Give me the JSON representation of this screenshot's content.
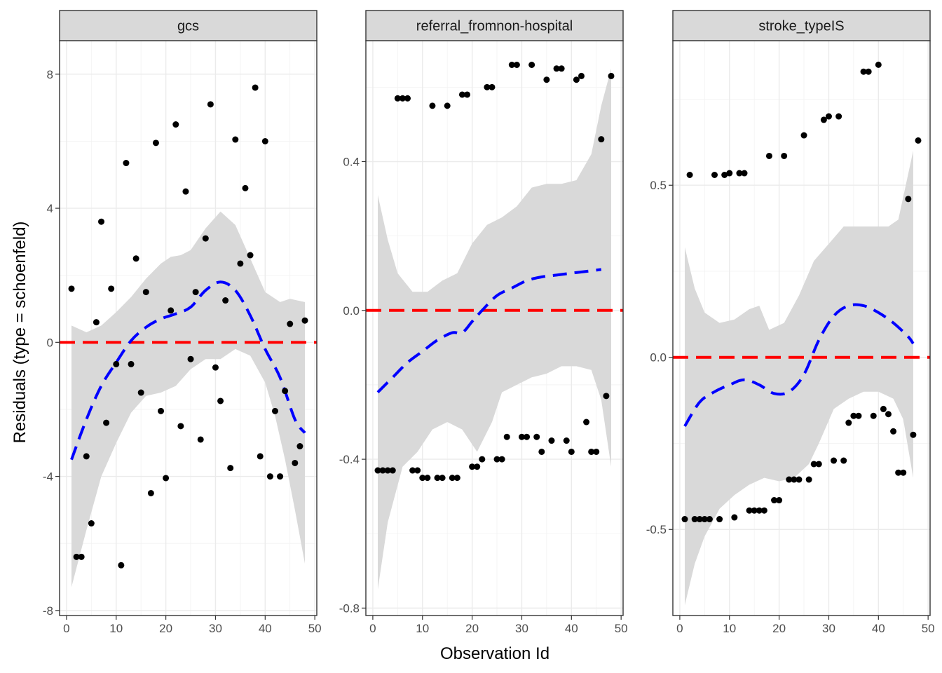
{
  "chart_data": {
    "type": "scatter",
    "xlabel": "Observation Id",
    "ylabel": "Residuals (type = schoenfeld)",
    "colors": {
      "points": "#000000",
      "smooth": "#0000ff",
      "reference": "#ff0000",
      "band": "#d9d9d9"
    },
    "x_ticks": [
      "0",
      "10",
      "20",
      "30",
      "40",
      "50"
    ],
    "xlim": [
      -1.4,
      50.4
    ],
    "panels": [
      {
        "strip": "gcs",
        "ylim": [
          -8.15,
          9.0
        ],
        "y_ticks": [
          "-8",
          "-4",
          "0",
          "4",
          "8"
        ],
        "y_tick_values": [
          -8,
          -4,
          0,
          4,
          8
        ],
        "y_minor": [
          -6,
          -2,
          2,
          6
        ],
        "reference_line": 0,
        "points": [
          [
            1,
            1.6
          ],
          [
            2,
            -6.4
          ],
          [
            3,
            -6.4
          ],
          [
            4,
            -3.4
          ],
          [
            5,
            -5.4
          ],
          [
            6,
            0.6
          ],
          [
            7,
            3.6
          ],
          [
            8,
            -2.4
          ],
          [
            9,
            1.6
          ],
          [
            10,
            -0.65
          ],
          [
            11,
            -6.65
          ],
          [
            12,
            5.35
          ],
          [
            13,
            -0.65
          ],
          [
            14,
            2.5
          ],
          [
            15,
            -1.5
          ],
          [
            16,
            1.5
          ],
          [
            17,
            -4.5
          ],
          [
            18,
            5.95
          ],
          [
            19,
            -2.05
          ],
          [
            20,
            -4.05
          ],
          [
            21,
            0.95
          ],
          [
            22,
            6.5
          ],
          [
            23,
            -2.5
          ],
          [
            24,
            4.5
          ],
          [
            25,
            -0.5
          ],
          [
            26,
            1.5
          ],
          [
            27,
            -2.9
          ],
          [
            28,
            3.1
          ],
          [
            29,
            7.1
          ],
          [
            30,
            -0.75
          ],
          [
            31,
            -1.75
          ],
          [
            32,
            1.25
          ],
          [
            33,
            -3.75
          ],
          [
            34,
            6.05
          ],
          [
            35,
            2.35
          ],
          [
            36,
            4.6
          ],
          [
            37,
            2.6
          ],
          [
            38,
            7.6
          ],
          [
            39,
            -3.4
          ],
          [
            40,
            6.0
          ],
          [
            41,
            -4.0
          ],
          [
            42,
            -2.05
          ],
          [
            43,
            -4.0
          ],
          [
            44,
            -1.45
          ],
          [
            45,
            0.55
          ],
          [
            46,
            -3.6
          ],
          [
            47,
            -3.1
          ],
          [
            48,
            0.65
          ]
        ],
        "smooth": [
          [
            1,
            -3.5
          ],
          [
            4,
            -2.3
          ],
          [
            7,
            -1.3
          ],
          [
            10,
            -0.6
          ],
          [
            13,
            0.05
          ],
          [
            16,
            0.45
          ],
          [
            19,
            0.7
          ],
          [
            22,
            0.85
          ],
          [
            25,
            1.05
          ],
          [
            28,
            1.55
          ],
          [
            31,
            1.8
          ],
          [
            34,
            1.55
          ],
          [
            37,
            0.8
          ],
          [
            40,
            -0.2
          ],
          [
            43,
            -1.05
          ],
          [
            46,
            -2.3
          ],
          [
            48,
            -2.7
          ]
        ],
        "band_upper": [
          [
            1,
            0.5
          ],
          [
            4,
            0.3
          ],
          [
            7,
            0.5
          ],
          [
            10,
            0.9
          ],
          [
            13,
            1.35
          ],
          [
            16,
            1.9
          ],
          [
            19,
            2.35
          ],
          [
            21,
            2.55
          ],
          [
            23,
            2.6
          ],
          [
            25,
            2.75
          ],
          [
            28,
            3.4
          ],
          [
            31,
            3.9
          ],
          [
            34,
            3.5
          ],
          [
            37,
            2.5
          ],
          [
            40,
            1.5
          ],
          [
            43,
            1.2
          ],
          [
            45,
            1.3
          ],
          [
            48,
            1.2
          ]
        ],
        "band_lower": [
          [
            48,
            -6.6
          ],
          [
            46,
            -5.0
          ],
          [
            44,
            -3.5
          ],
          [
            42,
            -2.2
          ],
          [
            40,
            -1.2
          ],
          [
            37,
            -0.4
          ],
          [
            34,
            -0.2
          ],
          [
            31,
            -0.5
          ],
          [
            28,
            -0.5
          ],
          [
            25,
            -0.8
          ],
          [
            22,
            -1.3
          ],
          [
            19,
            -1.5
          ],
          [
            16,
            -1.6
          ],
          [
            13,
            -2.1
          ],
          [
            10,
            -3.0
          ],
          [
            7,
            -4.0
          ],
          [
            4,
            -5.6
          ],
          [
            1,
            -7.3
          ]
        ]
      },
      {
        "strip": "referral_fromnon-hospital",
        "ylim": [
          -0.82,
          0.725
        ],
        "y_ticks": [
          "-0.8",
          "-0.4",
          "0.0",
          "0.4"
        ],
        "y_tick_values": [
          -0.8,
          -0.4,
          0.0,
          0.4
        ],
        "y_minor": [
          -0.6,
          -0.2,
          0.2,
          0.6
        ],
        "reference_line": 0,
        "points": [
          [
            1,
            -0.43
          ],
          [
            2,
            -0.43
          ],
          [
            3,
            -0.43
          ],
          [
            4,
            -0.43
          ],
          [
            5,
            0.57
          ],
          [
            6,
            0.57
          ],
          [
            7,
            0.57
          ],
          [
            8,
            -0.43
          ],
          [
            9,
            -0.43
          ],
          [
            10,
            -0.45
          ],
          [
            11,
            -0.45
          ],
          [
            12,
            0.55
          ],
          [
            13,
            -0.45
          ],
          [
            14,
            -0.45
          ],
          [
            15,
            0.55
          ],
          [
            16,
            -0.45
          ],
          [
            17,
            -0.45
          ],
          [
            18,
            0.58
          ],
          [
            19,
            0.58
          ],
          [
            20,
            -0.42
          ],
          [
            21,
            -0.42
          ],
          [
            22,
            -0.4
          ],
          [
            23,
            0.6
          ],
          [
            24,
            0.6
          ],
          [
            25,
            -0.4
          ],
          [
            26,
            -0.4
          ],
          [
            27,
            -0.34
          ],
          [
            28,
            0.66
          ],
          [
            29,
            0.66
          ],
          [
            30,
            -0.34
          ],
          [
            31,
            -0.34
          ],
          [
            32,
            0.66
          ],
          [
            33,
            -0.34
          ],
          [
            34,
            -0.38
          ],
          [
            35,
            0.62
          ],
          [
            36,
            -0.35
          ],
          [
            37,
            0.65
          ],
          [
            38,
            0.65
          ],
          [
            39,
            -0.35
          ],
          [
            40,
            -0.38
          ],
          [
            41,
            0.62
          ],
          [
            42,
            0.63
          ],
          [
            43,
            -0.3
          ],
          [
            44,
            -0.38
          ],
          [
            45,
            -0.38
          ],
          [
            46,
            0.46
          ],
          [
            47,
            -0.23
          ],
          [
            48,
            0.63
          ]
        ],
        "smooth": [
          [
            1,
            -0.22
          ],
          [
            4,
            -0.18
          ],
          [
            7,
            -0.14
          ],
          [
            10,
            -0.11
          ],
          [
            13,
            -0.08
          ],
          [
            16,
            -0.06
          ],
          [
            18,
            -0.06
          ],
          [
            20,
            -0.03
          ],
          [
            22,
            0.0
          ],
          [
            25,
            0.04
          ],
          [
            28,
            0.06
          ],
          [
            31,
            0.08
          ],
          [
            34,
            0.09
          ],
          [
            37,
            0.095
          ],
          [
            40,
            0.1
          ],
          [
            43,
            0.105
          ],
          [
            46,
            0.11
          ]
        ],
        "band_upper": [
          [
            1,
            0.31
          ],
          [
            3,
            0.19
          ],
          [
            5,
            0.1
          ],
          [
            8,
            0.05
          ],
          [
            11,
            0.05
          ],
          [
            14,
            0.08
          ],
          [
            17,
            0.1
          ],
          [
            20,
            0.18
          ],
          [
            23,
            0.23
          ],
          [
            26,
            0.25
          ],
          [
            29,
            0.28
          ],
          [
            32,
            0.33
          ],
          [
            35,
            0.34
          ],
          [
            38,
            0.34
          ],
          [
            41,
            0.35
          ],
          [
            44,
            0.42
          ],
          [
            46,
            0.55
          ],
          [
            48,
            0.65
          ]
        ],
        "band_lower": [
          [
            48,
            -0.42
          ],
          [
            46,
            -0.24
          ],
          [
            44,
            -0.16
          ],
          [
            41,
            -0.15
          ],
          [
            38,
            -0.15
          ],
          [
            35,
            -0.17
          ],
          [
            32,
            -0.18
          ],
          [
            29,
            -0.2
          ],
          [
            26,
            -0.22
          ],
          [
            24,
            -0.3
          ],
          [
            21,
            -0.38
          ],
          [
            18,
            -0.32
          ],
          [
            15,
            -0.3
          ],
          [
            12,
            -0.32
          ],
          [
            9,
            -0.38
          ],
          [
            6,
            -0.42
          ],
          [
            3,
            -0.57
          ],
          [
            1,
            -0.75
          ]
        ]
      },
      {
        "strip": "stroke_typeIS",
        "ylim": [
          -0.75,
          0.92
        ],
        "y_ticks": [
          "-0.5",
          "0.0",
          "0.5"
        ],
        "y_tick_values": [
          -0.5,
          0.0,
          0.5
        ],
        "y_minor": [
          -0.25,
          0.25,
          0.75
        ],
        "reference_line": 0,
        "points": [
          [
            1,
            -0.47
          ],
          [
            2,
            0.53
          ],
          [
            3,
            -0.47
          ],
          [
            4,
            -0.47
          ],
          [
            5,
            -0.47
          ],
          [
            6,
            -0.47
          ],
          [
            7,
            0.53
          ],
          [
            8,
            -0.47
          ],
          [
            9,
            0.53
          ],
          [
            10,
            0.535
          ],
          [
            11,
            -0.465
          ],
          [
            12,
            0.535
          ],
          [
            13,
            0.535
          ],
          [
            14,
            -0.445
          ],
          [
            15,
            -0.445
          ],
          [
            16,
            -0.445
          ],
          [
            17,
            -0.445
          ],
          [
            18,
            0.585
          ],
          [
            19,
            -0.415
          ],
          [
            20,
            -0.415
          ],
          [
            21,
            0.585
          ],
          [
            22,
            -0.355
          ],
          [
            23,
            -0.355
          ],
          [
            24,
            -0.355
          ],
          [
            25,
            0.645
          ],
          [
            26,
            -0.355
          ],
          [
            27,
            -0.31
          ],
          [
            28,
            -0.31
          ],
          [
            29,
            0.69
          ],
          [
            30,
            0.7
          ],
          [
            31,
            -0.3
          ],
          [
            32,
            0.7
          ],
          [
            33,
            -0.3
          ],
          [
            34,
            -0.19
          ],
          [
            35,
            -0.17
          ],
          [
            36,
            -0.17
          ],
          [
            37,
            0.83
          ],
          [
            38,
            0.83
          ],
          [
            39,
            -0.17
          ],
          [
            40,
            0.85
          ],
          [
            41,
            -0.15
          ],
          [
            42,
            -0.165
          ],
          [
            43,
            -0.215
          ],
          [
            44,
            -0.335
          ],
          [
            45,
            -0.335
          ],
          [
            46,
            0.46
          ],
          [
            47,
            -0.225
          ],
          [
            48,
            0.63
          ]
        ],
        "smooth": [
          [
            1,
            -0.2
          ],
          [
            4,
            -0.13
          ],
          [
            7,
            -0.1
          ],
          [
            10,
            -0.08
          ],
          [
            13,
            -0.065
          ],
          [
            16,
            -0.08
          ],
          [
            19,
            -0.105
          ],
          [
            22,
            -0.1
          ],
          [
            25,
            -0.05
          ],
          [
            28,
            0.05
          ],
          [
            31,
            0.12
          ],
          [
            34,
            0.15
          ],
          [
            37,
            0.15
          ],
          [
            40,
            0.13
          ],
          [
            43,
            0.1
          ],
          [
            46,
            0.06
          ],
          [
            47,
            0.04
          ]
        ],
        "band_upper": [
          [
            1,
            0.32
          ],
          [
            3,
            0.2
          ],
          [
            5,
            0.13
          ],
          [
            8,
            0.1
          ],
          [
            11,
            0.11
          ],
          [
            14,
            0.14
          ],
          [
            16,
            0.15
          ],
          [
            18,
            0.08
          ],
          [
            21,
            0.1
          ],
          [
            24,
            0.18
          ],
          [
            27,
            0.28
          ],
          [
            30,
            0.33
          ],
          [
            33,
            0.38
          ],
          [
            36,
            0.38
          ],
          [
            39,
            0.38
          ],
          [
            42,
            0.38
          ],
          [
            44,
            0.4
          ],
          [
            47,
            0.6
          ]
        ],
        "band_lower": [
          [
            47,
            -0.35
          ],
          [
            45,
            -0.18
          ],
          [
            43,
            -0.12
          ],
          [
            40,
            -0.1
          ],
          [
            37,
            -0.1
          ],
          [
            34,
            -0.12
          ],
          [
            31,
            -0.15
          ],
          [
            28,
            -0.25
          ],
          [
            26,
            -0.31
          ],
          [
            23,
            -0.35
          ],
          [
            20,
            -0.36
          ],
          [
            17,
            -0.35
          ],
          [
            14,
            -0.37
          ],
          [
            11,
            -0.4
          ],
          [
            8,
            -0.44
          ],
          [
            5,
            -0.52
          ],
          [
            3,
            -0.6
          ],
          [
            1,
            -0.72
          ]
        ]
      }
    ]
  }
}
